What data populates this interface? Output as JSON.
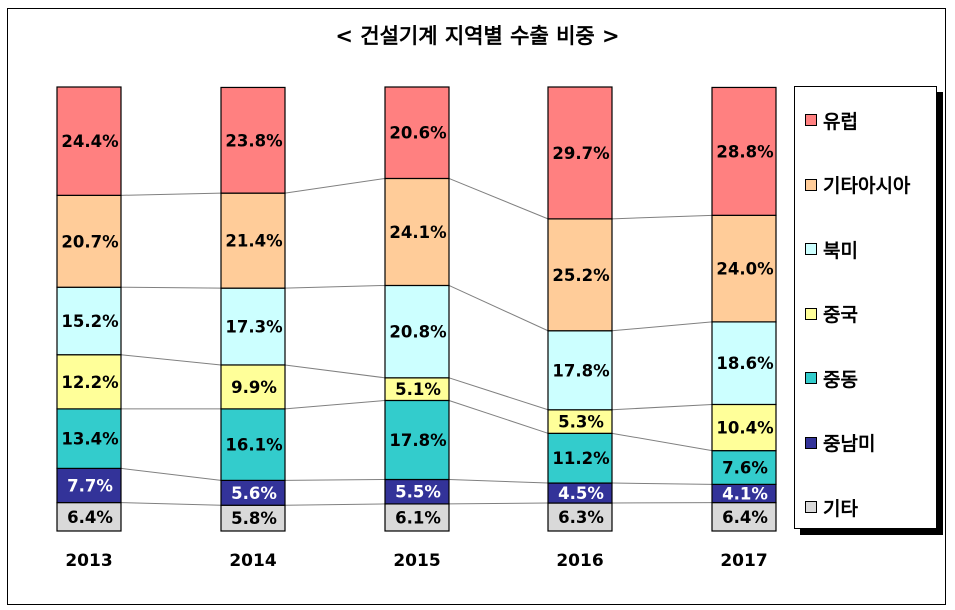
{
  "chart_data": {
    "type": "bar",
    "stacked": true,
    "normalized": true,
    "title": "< 건설기계 지역별 수출 비중 >",
    "categories": [
      "2013",
      "2014",
      "2015",
      "2016",
      "2017"
    ],
    "series": [
      {
        "name": "기타",
        "color": "#D9D9D9",
        "values": [
          6.4,
          5.8,
          6.1,
          6.3,
          6.4
        ],
        "labels": [
          "6.4%",
          "5.8%",
          "6.1%",
          "6.3%",
          "6.4%"
        ],
        "label_color": "#000000"
      },
      {
        "name": "중남미",
        "color": "#333399",
        "values": [
          7.7,
          5.6,
          5.5,
          4.5,
          4.1
        ],
        "labels": [
          "7.7%",
          "5.6%",
          "5.5%",
          "4.5%",
          "4.1%"
        ],
        "label_color": "#FFFFFF"
      },
      {
        "name": "중동",
        "color": "#33CCCC",
        "values": [
          13.4,
          16.1,
          17.8,
          11.2,
          7.6
        ],
        "labels": [
          "13.4%",
          "16.1%",
          "17.8%",
          "11.2%",
          "7.6%"
        ],
        "label_color": "#000000"
      },
      {
        "name": "중국",
        "color": "#FFFF99",
        "values": [
          12.2,
          9.9,
          5.1,
          5.3,
          10.4
        ],
        "labels": [
          "12.2%",
          "9.9%",
          "5.1%",
          "5.3%",
          "10.4%"
        ],
        "label_color": "#000000"
      },
      {
        "name": "북미",
        "color": "#CCFFFF",
        "values": [
          15.2,
          17.3,
          20.8,
          17.8,
          18.6
        ],
        "labels": [
          "15.2%",
          "17.3%",
          "20.8%",
          "17.8%",
          "18.6%"
        ],
        "label_color": "#000000"
      },
      {
        "name": "기타아시아",
        "color": "#FFCC99",
        "values": [
          20.7,
          21.4,
          24.1,
          25.2,
          24.0
        ],
        "labels": [
          "20.7%",
          "21.4%",
          "24.1%",
          "25.2%",
          "24.0%"
        ],
        "label_color": "#000000"
      },
      {
        "name": "유럽",
        "color": "#FF8080",
        "values": [
          24.4,
          23.8,
          20.6,
          29.7,
          28.8
        ],
        "labels": [
          "24.4%",
          "23.8%",
          "20.6%",
          "29.7%",
          "28.8%"
        ],
        "label_color": "#000000"
      }
    ],
    "ylim": [
      0,
      100
    ],
    "series_lines": true,
    "grid": false,
    "legend": "right"
  }
}
